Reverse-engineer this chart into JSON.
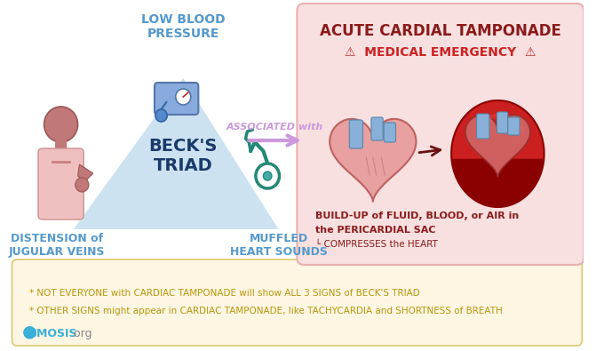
{
  "bg_color": "#ffffff",
  "triangle_color": "#c8dff0",
  "triangle_text": "BECK'S\nTRIAD",
  "triangle_text_color": "#1a3a6b",
  "top_label": "LOW BLOOD\nPRESSURE",
  "top_label_color": "#5599cc",
  "bottom_left_label": "DISTENSION of\nJUGULAR VEINS",
  "bottom_left_label_color": "#5599cc",
  "bottom_right_label": "MUFFLED\nHEART SOUNDS",
  "bottom_right_label_color": "#5599cc",
  "arrow_label": "ASSOCIATED with",
  "arrow_label_color": "#9966bb",
  "arrow_color": "#cc99dd",
  "right_box_bg": "#f8e0e0",
  "right_box_border": "#e8b0b0",
  "right_title": "ACUTE CARDIAL TAMPONADE",
  "right_title_color": "#8b1a1a",
  "emergency_text": "⚠  MEDICAL EMERGENCY  ⚠",
  "emergency_color": "#cc2222",
  "build_up_line1": "BUILD-UP of FLUID, BLOOD, or AIR in",
  "build_up_line2": "the PERICARDIAL SAC",
  "build_up_line3": "└ COMPRESSES the HEART",
  "build_up_color": "#8b1a1a",
  "bottom_box_bg": "#fdf6e3",
  "bottom_box_border": "#ddc870",
  "note1": "* NOT EVERYONE with CARDIAC TAMPONADE will show ALL 3 SIGNS of BECK'S TRIAD",
  "note2": "* OTHER SIGNS might appear in CARDIAC TAMPONADE, like TACHYCARDIA and SHORTNESS of BREATH",
  "note_color": "#b8960a",
  "warning_color": "#d4a800",
  "heart_left_color": "#e8a0a0",
  "heart_left_edge": "#c06060",
  "heart_right_color": "#8b1515",
  "heart_right_edge": "#6a0a0a",
  "vessel_color": "#88b0d8",
  "vessel_edge": "#5588aa",
  "person_head": "#c07878",
  "person_body": "#e8b0b0",
  "person_shirt": "#f5d0d0",
  "arrow_between_hearts": "#6a1010",
  "osmosis_blue": "#3ab0d8",
  "osmosis_gray": "#888888"
}
